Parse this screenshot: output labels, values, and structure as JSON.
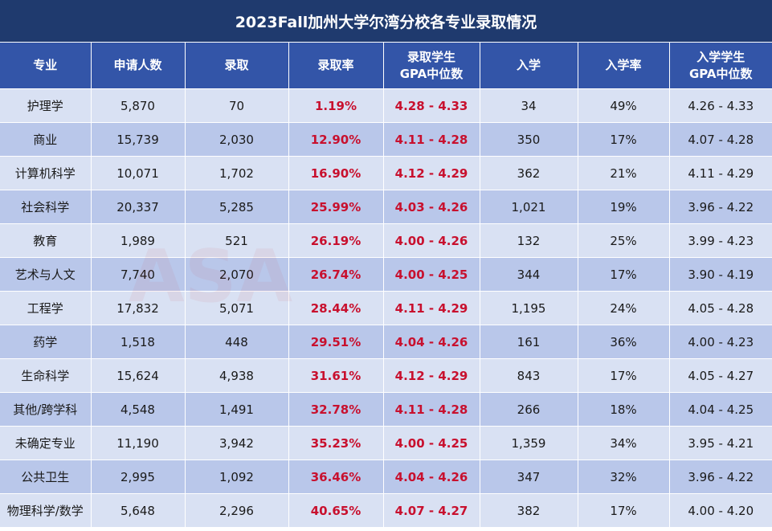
{
  "title": "2023Fall加州大学尔湾分校各专业录取情况",
  "headers": {
    "major": "专业",
    "applicants": "申请人数",
    "admitted": "录取",
    "admit_rate": "录取率",
    "admit_gpa_1": "录取学生",
    "admit_gpa_2": "GPA中位数",
    "enrolled": "入学",
    "enroll_rate": "入学率",
    "enroll_gpa_1": "入学学生",
    "enroll_gpa_2": "GPA中位数"
  },
  "rows": [
    {
      "major": "护理学",
      "applicants": "5,870",
      "admitted": "70",
      "admit_rate": "1.19%",
      "admit_gpa": "4.28 - 4.33",
      "enrolled": "34",
      "enroll_rate": "49%",
      "enroll_gpa": "4.26 - 4.33"
    },
    {
      "major": "商业",
      "applicants": "15,739",
      "admitted": "2,030",
      "admit_rate": "12.90%",
      "admit_gpa": "4.11 - 4.28",
      "enrolled": "350",
      "enroll_rate": "17%",
      "enroll_gpa": "4.07 - 4.28"
    },
    {
      "major": "计算机科学",
      "applicants": "10,071",
      "admitted": "1,702",
      "admit_rate": "16.90%",
      "admit_gpa": "4.12 - 4.29",
      "enrolled": "362",
      "enroll_rate": "21%",
      "enroll_gpa": "4.11 - 4.29"
    },
    {
      "major": "社会科学",
      "applicants": "20,337",
      "admitted": "5,285",
      "admit_rate": "25.99%",
      "admit_gpa": "4.03 - 4.26",
      "enrolled": "1,021",
      "enroll_rate": "19%",
      "enroll_gpa": "3.96 - 4.22"
    },
    {
      "major": "教育",
      "applicants": "1,989",
      "admitted": "521",
      "admit_rate": "26.19%",
      "admit_gpa": "4.00 - 4.26",
      "enrolled": "132",
      "enroll_rate": "25%",
      "enroll_gpa": "3.99 - 4.23"
    },
    {
      "major": "艺术与人文",
      "applicants": "7,740",
      "admitted": "2,070",
      "admit_rate": "26.74%",
      "admit_gpa": "4.00 - 4.25",
      "enrolled": "344",
      "enroll_rate": "17%",
      "enroll_gpa": "3.90 - 4.19"
    },
    {
      "major": "工程学",
      "applicants": "17,832",
      "admitted": "5,071",
      "admit_rate": "28.44%",
      "admit_gpa": "4.11 - 4.29",
      "enrolled": "1,195",
      "enroll_rate": "24%",
      "enroll_gpa": "4.05 - 4.28"
    },
    {
      "major": "药学",
      "applicants": "1,518",
      "admitted": "448",
      "admit_rate": "29.51%",
      "admit_gpa": "4.04 - 4.26",
      "enrolled": "161",
      "enroll_rate": "36%",
      "enroll_gpa": "4.00 - 4.23"
    },
    {
      "major": "生命科学",
      "applicants": "15,624",
      "admitted": "4,938",
      "admit_rate": "31.61%",
      "admit_gpa": "4.12 - 4.29",
      "enrolled": "843",
      "enroll_rate": "17%",
      "enroll_gpa": "4.05 - 4.27"
    },
    {
      "major": "其他/跨学科",
      "applicants": "4,548",
      "admitted": "1,491",
      "admit_rate": "32.78%",
      "admit_gpa": "4.11 - 4.28",
      "enrolled": "266",
      "enroll_rate": "18%",
      "enroll_gpa": "4.04 - 4.25"
    },
    {
      "major": "未确定专业",
      "applicants": "11,190",
      "admitted": "3,942",
      "admit_rate": "35.23%",
      "admit_gpa": "4.00 - 4.25",
      "enrolled": "1,359",
      "enroll_rate": "34%",
      "enroll_gpa": "3.95 - 4.21"
    },
    {
      "major": "公共卫生",
      "applicants": "2,995",
      "admitted": "1,092",
      "admit_rate": "36.46%",
      "admit_gpa": "4.04 - 4.26",
      "enrolled": "347",
      "enroll_rate": "32%",
      "enroll_gpa": "3.96 - 4.22"
    },
    {
      "major": "物理科学/数学",
      "applicants": "5,648",
      "admitted": "2,296",
      "admit_rate": "40.65%",
      "admit_gpa": "4.07 - 4.27",
      "enrolled": "382",
      "enroll_rate": "17%",
      "enroll_gpa": "4.00 - 4.20"
    }
  ],
  "watermark": "ASA",
  "colors": {
    "title_bg": "#1f3a6e",
    "header_bg": "#3355a8",
    "row_light": "#d9e1f3",
    "row_dark": "#b9c7ea",
    "highlight": "#c8102e"
  }
}
